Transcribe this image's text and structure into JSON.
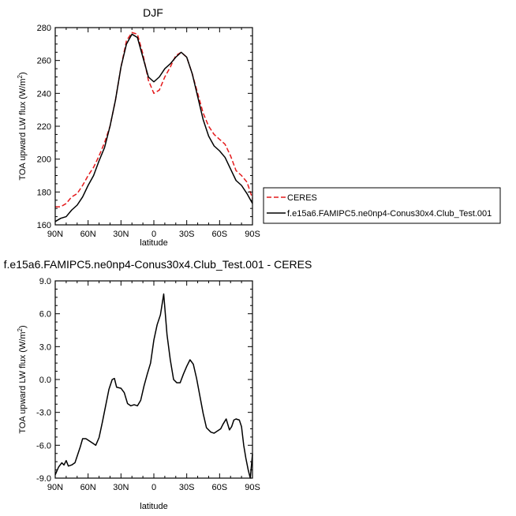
{
  "chart_data": [
    {
      "type": "line",
      "title": "DJF",
      "xlabel": "latitude",
      "ylabel": "TOA upward LW flux (W/m²)",
      "ylabel_main": "TOA upward LW flux (W/m",
      "ylabel_sup": "2",
      "ylabel_close": ")",
      "xlim": [
        90,
        -90
      ],
      "ylim": [
        160,
        280
      ],
      "x_ticks": [
        90,
        60,
        30,
        0,
        -30,
        -60,
        -90
      ],
      "x_tick_labels": [
        "90N",
        "60N",
        "30N",
        "0",
        "30S",
        "60S",
        "90S"
      ],
      "y_ticks": [
        160,
        180,
        200,
        220,
        240,
        260,
        280
      ],
      "y_tick_labels": [
        "160",
        "180",
        "200",
        "220",
        "240",
        "260",
        "280"
      ],
      "legend_position": "right",
      "series": [
        {
          "name": "CERES",
          "color": "#e41a1c",
          "dash": "dashed",
          "x": [
            90,
            85,
            80,
            75,
            70,
            65,
            60,
            55,
            50,
            45,
            40,
            35,
            30,
            25,
            20,
            15,
            10,
            5,
            0,
            -5,
            -10,
            -15,
            -20,
            -25,
            -30,
            -35,
            -40,
            -45,
            -50,
            -55,
            -60,
            -65,
            -70,
            -75,
            -80,
            -85,
            -90
          ],
          "y": [
            171,
            171,
            173,
            177,
            179,
            184,
            190,
            195,
            202,
            210,
            220,
            236,
            256,
            272,
            277,
            276,
            264,
            248,
            240,
            242,
            250,
            256,
            263,
            265,
            262,
            252,
            240,
            228,
            220,
            215,
            212,
            209,
            202,
            193,
            190,
            186,
            176
          ]
        },
        {
          "name": "f.e15a6.FAMIPC5.ne0np4-Conus30x4.Club_Test.001",
          "color": "#000000",
          "dash": "solid",
          "x": [
            90,
            85,
            80,
            75,
            70,
            65,
            60,
            55,
            50,
            45,
            40,
            35,
            30,
            25,
            20,
            15,
            10,
            5,
            0,
            -5,
            -10,
            -15,
            -20,
            -25,
            -30,
            -35,
            -40,
            -45,
            -50,
            -55,
            -60,
            -65,
            -70,
            -75,
            -80,
            -85,
            -90
          ],
          "y": [
            162,
            164,
            165,
            169,
            172,
            177,
            184,
            190,
            199,
            207,
            220,
            236,
            256,
            270,
            276,
            274,
            262,
            250,
            247,
            250,
            255,
            258,
            262,
            265,
            262,
            252,
            238,
            224,
            214,
            208,
            205,
            201,
            194,
            187,
            184,
            179,
            173
          ]
        }
      ]
    },
    {
      "type": "line",
      "title": "f.e15a6.FAMIPC5.ne0np4-Conus30x4.Club_Test.001 - CERES",
      "xlabel": "latitude",
      "ylabel": "TOA upward LW flux (W/m²)",
      "ylabel_main": "TOA upward LW flux (W/m",
      "ylabel_sup": "2",
      "ylabel_close": ")",
      "xlim": [
        90,
        -90
      ],
      "ylim": [
        -9,
        9
      ],
      "x_ticks": [
        90,
        60,
        30,
        0,
        -30,
        -60,
        -90
      ],
      "x_tick_labels": [
        "90N",
        "60N",
        "30N",
        "0",
        "30S",
        "60S",
        "90S"
      ],
      "y_ticks": [
        -9,
        -6,
        -3,
        0,
        3,
        6,
        9
      ],
      "y_tick_labels": [
        "-9.0",
        "-6.0",
        "-3.0",
        "0.0",
        "3.0",
        "6.0",
        "9.0"
      ],
      "series": [
        {
          "name": "",
          "color": "#000000",
          "dash": "solid",
          "x": [
            90,
            87,
            84,
            82,
            80,
            78,
            75,
            72,
            70,
            67,
            65,
            62,
            59,
            56,
            53,
            50,
            47,
            44,
            41,
            38,
            36,
            34,
            30,
            27,
            24,
            21,
            18,
            15,
            12,
            9,
            6,
            3,
            0,
            -3,
            -6,
            -9,
            -12,
            -15,
            -18,
            -21,
            -24,
            -27,
            -30,
            -33,
            -36,
            -39,
            -42,
            -45,
            -48,
            -52,
            -55,
            -58,
            -61,
            -63,
            -66,
            -69,
            -71,
            -73,
            -75,
            -78,
            -80,
            -82,
            -84,
            -86,
            -88,
            -90
          ],
          "y": [
            -8.7,
            -8.0,
            -7.6,
            -7.8,
            -7.4,
            -7.9,
            -7.8,
            -7.6,
            -7.0,
            -6.1,
            -5.4,
            -5.4,
            -5.6,
            -5.8,
            -6.0,
            -5.3,
            -3.9,
            -2.4,
            -0.9,
            0.0,
            0.1,
            -0.7,
            -0.8,
            -1.2,
            -2.2,
            -2.4,
            -2.3,
            -2.4,
            -1.9,
            -0.6,
            0.5,
            1.5,
            3.6,
            5.0,
            5.9,
            7.8,
            4.1,
            1.8,
            0.0,
            -0.3,
            -0.3,
            0.5,
            1.2,
            1.8,
            1.4,
            0.1,
            -1.5,
            -3.1,
            -4.4,
            -4.8,
            -4.9,
            -4.7,
            -4.5,
            -4.1,
            -3.6,
            -4.6,
            -4.3,
            -3.7,
            -3.6,
            -3.7,
            -4.3,
            -6.0,
            -7.2,
            -8.2,
            -9.0,
            -6.8
          ]
        }
      ]
    }
  ]
}
